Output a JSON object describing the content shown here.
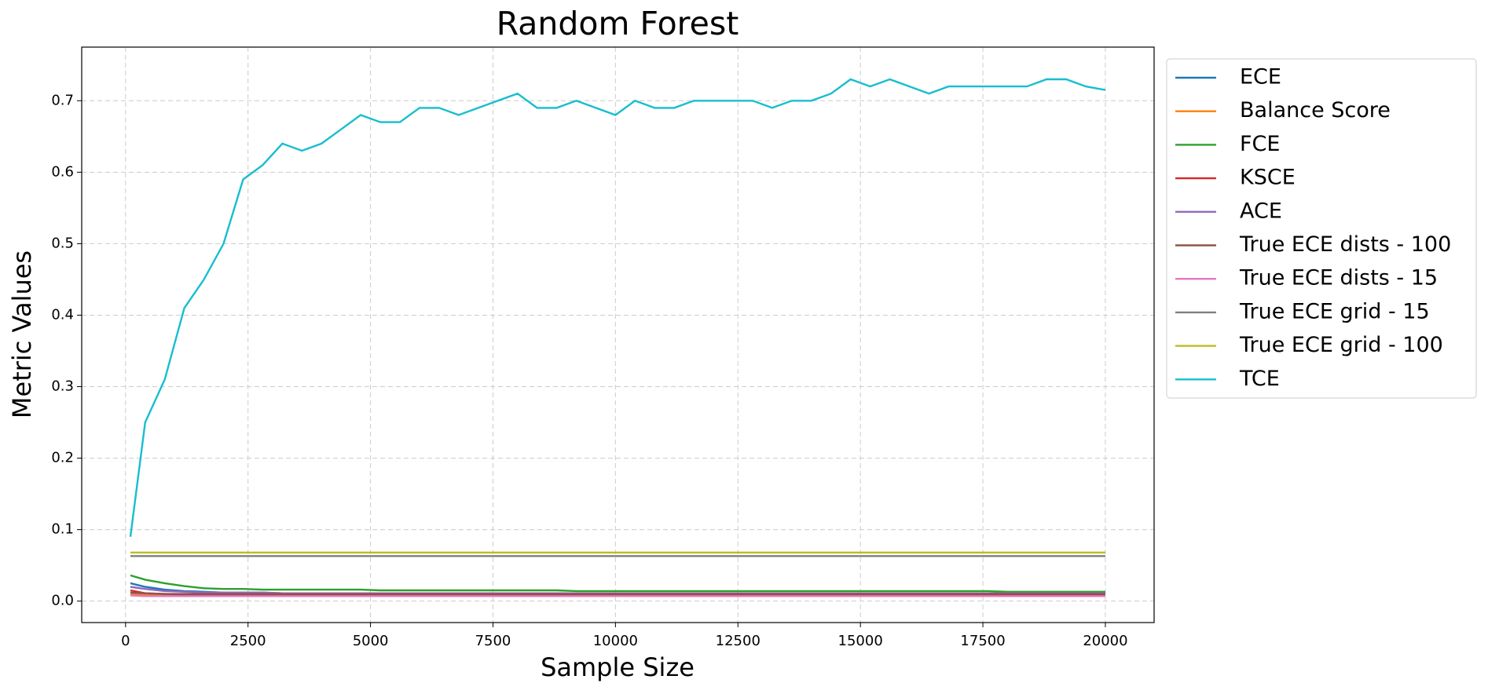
{
  "chart_data": {
    "type": "line",
    "title": "Random Forest",
    "x_label": "Sample Size",
    "y_label": "Metric Values",
    "x": [
      100,
      400,
      800,
      1200,
      1600,
      2000,
      2400,
      2800,
      3200,
      3600,
      4000,
      4400,
      4800,
      5200,
      5600,
      6000,
      6400,
      6800,
      7200,
      7600,
      8000,
      8400,
      8800,
      9200,
      9600,
      10000,
      10400,
      10800,
      11200,
      11600,
      12000,
      12400,
      12800,
      13200,
      13600,
      14000,
      14400,
      14800,
      15200,
      15600,
      16000,
      16400,
      16800,
      17200,
      17600,
      18000,
      18400,
      18800,
      19200,
      19600,
      20000
    ],
    "series": [
      {
        "name": "ECE",
        "color": "#1f77b4",
        "values": [
          0.025,
          0.02,
          0.016,
          0.014,
          0.013,
          0.012,
          0.012,
          0.012,
          0.011,
          0.011,
          0.011,
          0.011,
          0.011,
          0.011,
          0.011,
          0.011,
          0.011,
          0.011,
          0.011,
          0.011,
          0.011,
          0.011,
          0.011,
          0.01,
          0.01,
          0.01,
          0.01,
          0.01,
          0.01,
          0.01,
          0.01,
          0.01,
          0.01,
          0.01,
          0.01,
          0.01,
          0.01,
          0.01,
          0.01,
          0.01,
          0.01,
          0.01,
          0.01,
          0.01,
          0.01,
          0.01,
          0.01,
          0.01,
          0.01,
          0.01,
          0.01
        ]
      },
      {
        "name": "Balance Score",
        "color": "#ff7f0e",
        "values": [
          0.01,
          0.009,
          0.008,
          0.008,
          0.008,
          0.008,
          0.008,
          0.008,
          0.008,
          0.008,
          0.008,
          0.008,
          0.008,
          0.008,
          0.008,
          0.008,
          0.008,
          0.008,
          0.008,
          0.008,
          0.008,
          0.008,
          0.008,
          0.008,
          0.008,
          0.008,
          0.008,
          0.008,
          0.008,
          0.008,
          0.008,
          0.008,
          0.008,
          0.008,
          0.008,
          0.008,
          0.008,
          0.008,
          0.008,
          0.008,
          0.008,
          0.008,
          0.008,
          0.008,
          0.008,
          0.008,
          0.008,
          0.008,
          0.008,
          0.008,
          0.008
        ]
      },
      {
        "name": "FCE",
        "color": "#2ca02c",
        "values": [
          0.036,
          0.03,
          0.025,
          0.021,
          0.018,
          0.017,
          0.017,
          0.016,
          0.016,
          0.016,
          0.016,
          0.016,
          0.016,
          0.015,
          0.015,
          0.015,
          0.015,
          0.015,
          0.015,
          0.015,
          0.015,
          0.015,
          0.015,
          0.014,
          0.014,
          0.014,
          0.014,
          0.014,
          0.014,
          0.014,
          0.014,
          0.014,
          0.014,
          0.014,
          0.014,
          0.014,
          0.014,
          0.014,
          0.014,
          0.014,
          0.014,
          0.014,
          0.014,
          0.014,
          0.014,
          0.013,
          0.013,
          0.013,
          0.013,
          0.013,
          0.013
        ]
      },
      {
        "name": "KSCE",
        "color": "#d62728",
        "values": [
          0.015,
          0.011,
          0.01,
          0.009,
          0.009,
          0.009,
          0.009,
          0.009,
          0.009,
          0.009,
          0.009,
          0.009,
          0.009,
          0.009,
          0.009,
          0.009,
          0.009,
          0.008,
          0.008,
          0.008,
          0.008,
          0.008,
          0.008,
          0.008,
          0.008,
          0.008,
          0.008,
          0.008,
          0.008,
          0.008,
          0.008,
          0.008,
          0.008,
          0.008,
          0.008,
          0.008,
          0.008,
          0.008,
          0.008,
          0.008,
          0.008,
          0.008,
          0.008,
          0.008,
          0.008,
          0.008,
          0.008,
          0.008,
          0.008,
          0.008,
          0.008
        ]
      },
      {
        "name": "ACE",
        "color": "#9467bd",
        "values": [
          0.02,
          0.017,
          0.014,
          0.013,
          0.012,
          0.012,
          0.012,
          0.012,
          0.011,
          0.011,
          0.011,
          0.011,
          0.011,
          0.011,
          0.011,
          0.011,
          0.011,
          0.011,
          0.011,
          0.011,
          0.011,
          0.011,
          0.011,
          0.011,
          0.011,
          0.011,
          0.011,
          0.011,
          0.011,
          0.011,
          0.011,
          0.011,
          0.011,
          0.011,
          0.011,
          0.011,
          0.011,
          0.011,
          0.011,
          0.011,
          0.011,
          0.011,
          0.011,
          0.011,
          0.011,
          0.011,
          0.011,
          0.011,
          0.011,
          0.011,
          0.011
        ]
      },
      {
        "name": "True ECE dists - 100",
        "color": "#8c564b",
        "values": [
          0.012,
          0.011,
          0.01,
          0.01,
          0.01,
          0.01,
          0.01,
          0.01,
          0.01,
          0.01,
          0.01,
          0.01,
          0.01,
          0.01,
          0.01,
          0.01,
          0.01,
          0.01,
          0.01,
          0.01,
          0.01,
          0.01,
          0.01,
          0.01,
          0.01,
          0.01,
          0.01,
          0.01,
          0.01,
          0.01,
          0.01,
          0.01,
          0.01,
          0.01,
          0.01,
          0.01,
          0.01,
          0.01,
          0.01,
          0.01,
          0.01,
          0.01,
          0.01,
          0.01,
          0.01,
          0.01,
          0.01,
          0.01,
          0.01,
          0.01,
          0.01
        ]
      },
      {
        "name": "True ECE dists - 15",
        "color": "#e377c2",
        "values": [
          0.008,
          0.007,
          0.007,
          0.007,
          0.007,
          0.007,
          0.007,
          0.007,
          0.007,
          0.007,
          0.007,
          0.007,
          0.007,
          0.007,
          0.007,
          0.007,
          0.007,
          0.007,
          0.007,
          0.007,
          0.007,
          0.007,
          0.007,
          0.007,
          0.007,
          0.007,
          0.007,
          0.007,
          0.007,
          0.007,
          0.007,
          0.007,
          0.007,
          0.007,
          0.007,
          0.007,
          0.007,
          0.007,
          0.007,
          0.007,
          0.007,
          0.007,
          0.007,
          0.007,
          0.007,
          0.007,
          0.007,
          0.007,
          0.007,
          0.007,
          0.007
        ]
      },
      {
        "name": "True ECE grid - 15",
        "color": "#7f7f7f",
        "values": [
          0.063,
          0.063,
          0.063,
          0.063,
          0.063,
          0.063,
          0.063,
          0.063,
          0.063,
          0.063,
          0.063,
          0.063,
          0.063,
          0.063,
          0.063,
          0.063,
          0.063,
          0.063,
          0.063,
          0.063,
          0.063,
          0.063,
          0.063,
          0.063,
          0.063,
          0.063,
          0.063,
          0.063,
          0.063,
          0.063,
          0.063,
          0.063,
          0.063,
          0.063,
          0.063,
          0.063,
          0.063,
          0.063,
          0.063,
          0.063,
          0.063,
          0.063,
          0.063,
          0.063,
          0.063,
          0.063,
          0.063,
          0.063,
          0.063,
          0.063,
          0.063
        ]
      },
      {
        "name": "True ECE grid - 100",
        "color": "#bcbd22",
        "values": [
          0.068,
          0.068,
          0.068,
          0.068,
          0.068,
          0.068,
          0.068,
          0.068,
          0.068,
          0.068,
          0.068,
          0.068,
          0.068,
          0.068,
          0.068,
          0.068,
          0.068,
          0.068,
          0.068,
          0.068,
          0.068,
          0.068,
          0.068,
          0.068,
          0.068,
          0.068,
          0.068,
          0.068,
          0.068,
          0.068,
          0.068,
          0.068,
          0.068,
          0.068,
          0.068,
          0.068,
          0.068,
          0.068,
          0.068,
          0.068,
          0.068,
          0.068,
          0.068,
          0.068,
          0.068,
          0.068,
          0.068,
          0.068,
          0.068,
          0.068,
          0.068
        ]
      },
      {
        "name": "TCE",
        "color": "#17becf",
        "values": [
          0.09,
          0.25,
          0.31,
          0.41,
          0.45,
          0.5,
          0.59,
          0.61,
          0.64,
          0.63,
          0.64,
          0.66,
          0.68,
          0.67,
          0.67,
          0.69,
          0.69,
          0.68,
          0.69,
          0.7,
          0.71,
          0.69,
          0.69,
          0.7,
          0.69,
          0.68,
          0.7,
          0.69,
          0.69,
          0.7,
          0.7,
          0.7,
          0.7,
          0.69,
          0.7,
          0.7,
          0.71,
          0.73,
          0.72,
          0.73,
          0.72,
          0.71,
          0.72,
          0.72,
          0.72,
          0.72,
          0.72,
          0.73,
          0.73,
          0.72,
          0.715
        ]
      }
    ],
    "xlim": [
      -895,
      20995
    ],
    "ylim": [
      -0.03,
      0.775
    ],
    "xticks": [
      0,
      2500,
      5000,
      7500,
      10000,
      12500,
      15000,
      17500,
      20000
    ],
    "yticks": [
      {
        "value": 0,
        "label": "0.0"
      },
      0.1,
      0.2,
      0.3,
      0.4,
      0.5,
      0.6,
      0.7
    ],
    "grid": true,
    "legend": "outside-right"
  }
}
